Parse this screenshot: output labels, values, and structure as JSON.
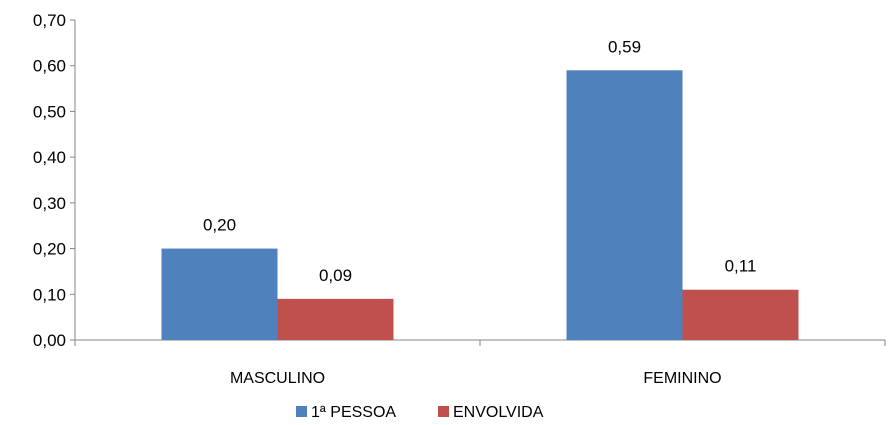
{
  "chart_data": {
    "type": "bar",
    "categories": [
      "MASCULINO",
      "FEMININO"
    ],
    "series": [
      {
        "name": "1ª PESSOA",
        "color": "#4F81BD",
        "values": [
          0.2,
          0.59
        ],
        "labels": [
          "0,20",
          "0,59"
        ]
      },
      {
        "name": "ENVOLVIDA",
        "color": "#C0504D",
        "values": [
          0.09,
          0.11
        ],
        "labels": [
          "0,09",
          "0,11"
        ]
      }
    ],
    "yticks": [
      0.0,
      0.1,
      0.2,
      0.3,
      0.4,
      0.5,
      0.6,
      0.7
    ],
    "ytick_labels": [
      "0,00",
      "0,10",
      "0,20",
      "0,30",
      "0,40",
      "0,50",
      "0,60",
      "0,70"
    ],
    "ylim": [
      0,
      0.7
    ],
    "grid": false,
    "legend_position": "bottom",
    "title": "",
    "xlabel": "",
    "ylabel": ""
  }
}
